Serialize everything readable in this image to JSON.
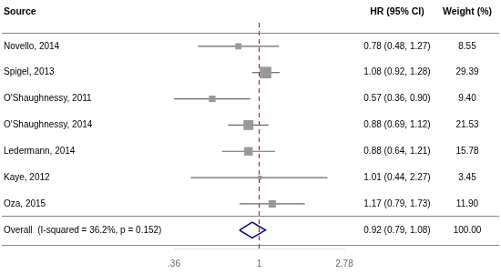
{
  "chart_data": {
    "type": "forest",
    "column_headers": [
      "Source",
      "HR (95% CI)",
      "Weight (%)"
    ],
    "categories": [
      "Novello, 2014",
      "Spigel, 2013",
      "O'Shaughnessy, 2011",
      "O'Shaughnessy, 2014",
      "Ledermann, 2014",
      "Kaye, 2012",
      "Oza, 2015"
    ],
    "values": [
      0.78,
      1.08,
      0.57,
      0.88,
      0.88,
      1.01,
      1.17
    ],
    "ci_low": [
      0.48,
      0.92,
      0.36,
      0.69,
      0.64,
      0.44,
      0.79
    ],
    "ci_high": [
      1.27,
      1.28,
      0.9,
      1.12,
      1.21,
      2.27,
      1.73
    ],
    "value_labels": [
      "0.78 (0.48, 1.27)",
      "1.08 (0.92, 1.28)",
      "0.57 (0.36, 0.90)",
      "0.88 (0.69, 1.12)",
      "0.88 (0.64, 1.21)",
      "1.01 (0.44, 2.27)",
      "1.17 (0.79, 1.73)"
    ],
    "weights": [
      8.55,
      29.39,
      9.4,
      21.53,
      15.78,
      3.45,
      11.9
    ],
    "weight_labels": [
      "8.55",
      "29.39",
      "9.40",
      "21.53",
      "15.78",
      "3.45",
      "11.90"
    ],
    "color": "#999999",
    "overall": {
      "label": "Overall  (I-squared = 36.2%, p = 0.152)",
      "value": 0.92,
      "ci_low": 0.79,
      "ci_high": 1.08,
      "value_label": "0.92 (0.79, 1.08)",
      "weight_label": "100.00",
      "color": "#00008B"
    },
    "reference": {
      "value": 1.0,
      "color": "#C00000",
      "line_style": "dashed"
    },
    "log": "x",
    "xlim": [
      0.36,
      2.78
    ],
    "xticks": [
      {
        "value": 0.36,
        "label": ".36"
      },
      1,
      2.78
    ],
    "grid": false
  }
}
